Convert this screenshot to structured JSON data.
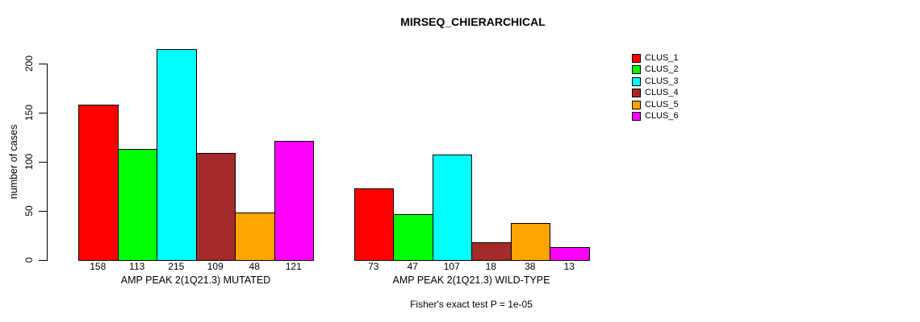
{
  "figure": {
    "background": "#FFFFFF",
    "text_color": "#000000"
  },
  "chart_data": {
    "type": "bar",
    "title": "MIRSEQ_CHIERARCHICAL",
    "xlabel": "",
    "ylabel": "number of cases",
    "ylim": [
      0,
      200
    ],
    "yticks": [
      0,
      50,
      100,
      150,
      200
    ],
    "grid": false,
    "legend_position": "top-right",
    "bar_border_color": "#000000",
    "categories": [
      "AMP PEAK 2(1Q21.3) MUTATED",
      "AMP PEAK 2(1Q21.3) WILD-TYPE"
    ],
    "series": [
      {
        "name": "CLUS_1",
        "color": "#FF0000",
        "values": [
          158,
          73
        ]
      },
      {
        "name": "CLUS_2",
        "color": "#00FF00",
        "values": [
          113,
          47
        ]
      },
      {
        "name": "CLUS_3",
        "color": "#00FFFF",
        "values": [
          215,
          107
        ]
      },
      {
        "name": "CLUS_4",
        "color": "#A52A2A",
        "values": [
          109,
          18
        ]
      },
      {
        "name": "CLUS_5",
        "color": "#FFA500",
        "values": [
          48,
          38
        ]
      },
      {
        "name": "CLUS_6",
        "color": "#FF00FF",
        "values": [
          121,
          13
        ]
      }
    ],
    "show_bar_value_labels": true
  },
  "footer": {
    "caption": "Fisher's exact test P = 1e-05"
  }
}
